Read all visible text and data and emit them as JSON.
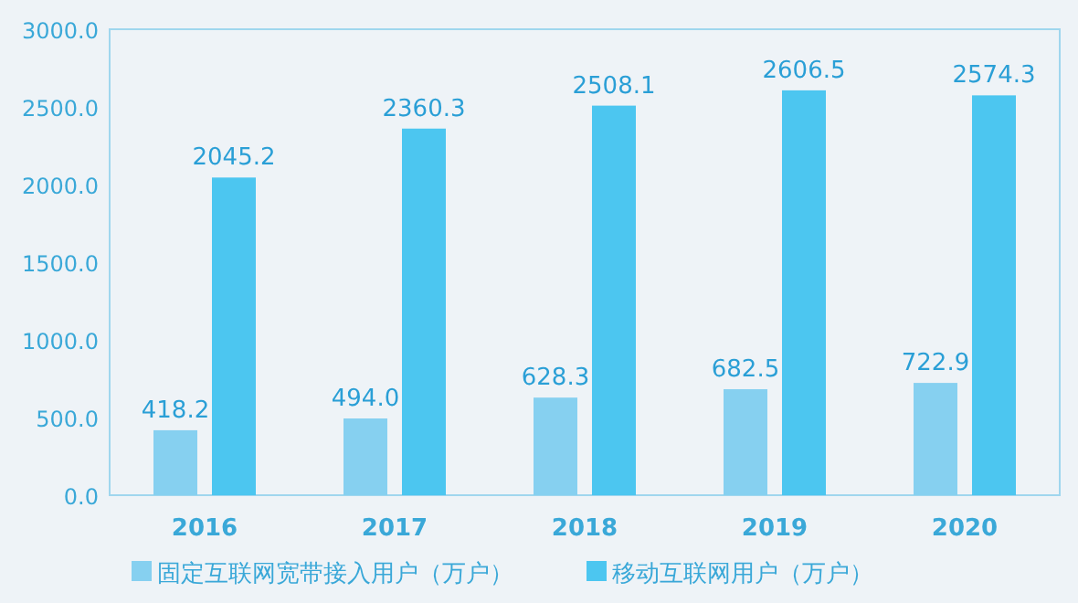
{
  "chart_data": {
    "type": "bar",
    "categories": [
      "2016",
      "2017",
      "2018",
      "2019",
      "2020"
    ],
    "series": [
      {
        "name": "固定互联网宽带接入用户（万户）",
        "color": "#86d0f0",
        "values": [
          418.2,
          494.0,
          628.3,
          682.5,
          722.9
        ],
        "value_labels": [
          "418.2",
          "494.0",
          "628.3",
          "682.5",
          "722.9"
        ]
      },
      {
        "name": "移动互联网用户（万户）",
        "color": "#4cc6f0",
        "values": [
          2045.2,
          2360.3,
          2508.1,
          2606.5,
          2574.3
        ],
        "value_labels": [
          "2045.2",
          "2360.3",
          "2508.1",
          "2606.5",
          "2574.3"
        ]
      }
    ],
    "ylim": [
      0,
      3000
    ],
    "yticks": [
      {
        "value": 0,
        "label": "0.0"
      },
      {
        "value": 500,
        "label": "500.0"
      },
      {
        "value": 1000,
        "label": "1000.0"
      },
      {
        "value": 1500,
        "label": "1500.0"
      },
      {
        "value": 2000,
        "label": "2000.0"
      },
      {
        "value": 2500,
        "label": "2500.0"
      },
      {
        "value": 3000,
        "label": "3000.0"
      }
    ],
    "legend": "bottom",
    "grid": false
  }
}
